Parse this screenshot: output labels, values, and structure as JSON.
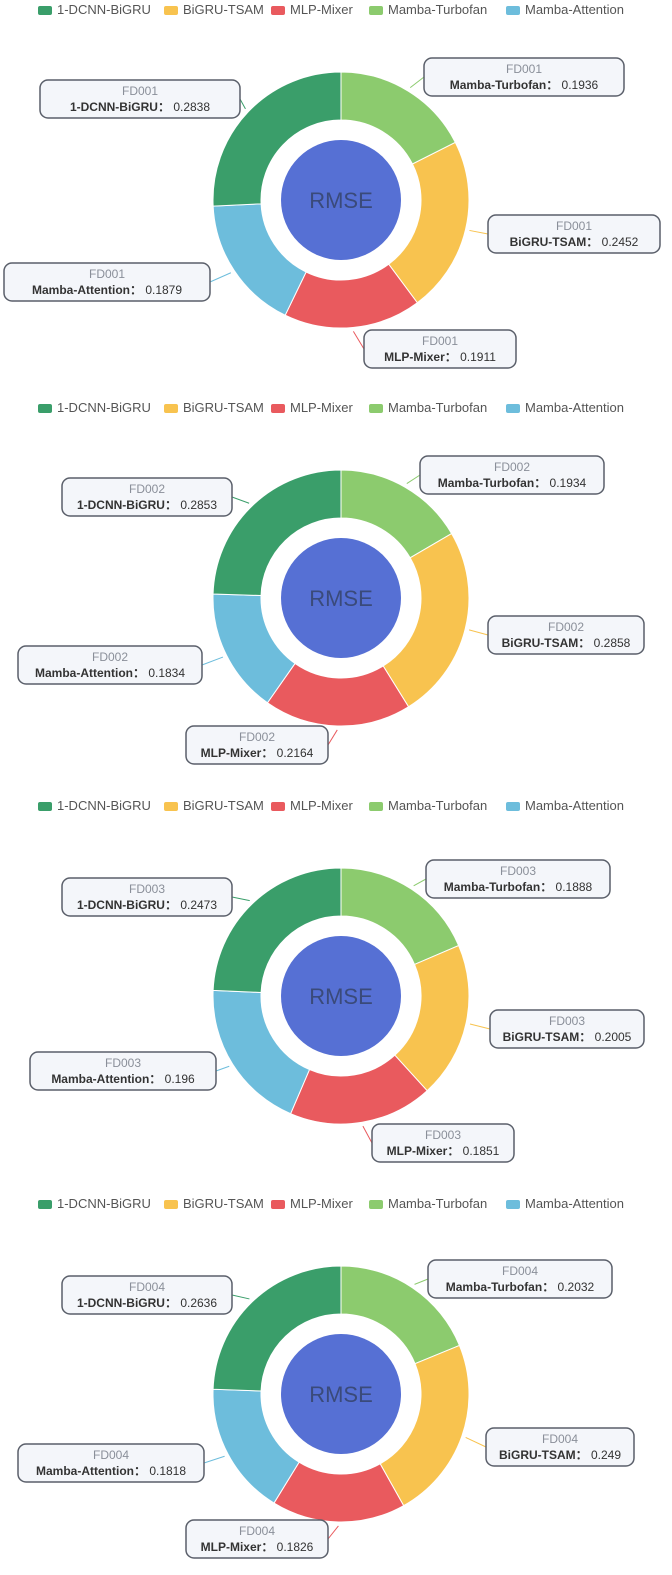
{
  "colors": {
    "1-DCNN-BiGRU": "#3a9e6a",
    "BiGRU-TSAM": "#f8c34f",
    "MLP-Mixer": "#e95a5e",
    "Mamba-Turbofan": "#8ccb6e",
    "Mamba-Attention": "#6dbddc",
    "center": "#5670d4"
  },
  "chart_data": [
    {
      "type": "pie",
      "subtype": "donut",
      "legend": [
        "1-DCNN-BiGRU",
        "BiGRU-TSAM",
        "MLP-Mixer",
        "Mamba-Turbofan",
        "Mamba-Attention"
      ],
      "legend_position": "top",
      "center_label": "RMSE",
      "series_name": "FD001",
      "slices": [
        {
          "name": "Mamba-Turbofan",
          "value": 0.1936
        },
        {
          "name": "BiGRU-TSAM",
          "value": 0.2452
        },
        {
          "name": "MLP-Mixer",
          "value": 0.1911
        },
        {
          "name": "Mamba-Attention",
          "value": 0.1879
        },
        {
          "name": "1-DCNN-BiGRU",
          "value": 0.2838
        }
      ]
    },
    {
      "type": "pie",
      "subtype": "donut",
      "legend": [
        "1-DCNN-BiGRU",
        "BiGRU-TSAM",
        "MLP-Mixer",
        "Mamba-Turbofan",
        "Mamba-Attention"
      ],
      "legend_position": "top",
      "center_label": "RMSE",
      "series_name": "FD002",
      "slices": [
        {
          "name": "Mamba-Turbofan",
          "value": 0.1934
        },
        {
          "name": "BiGRU-TSAM",
          "value": 0.2858
        },
        {
          "name": "MLP-Mixer",
          "value": 0.2164
        },
        {
          "name": "Mamba-Attention",
          "value": 0.1834
        },
        {
          "name": "1-DCNN-BiGRU",
          "value": 0.2853
        }
      ]
    },
    {
      "type": "pie",
      "subtype": "donut",
      "legend": [
        "1-DCNN-BiGRU",
        "BiGRU-TSAM",
        "MLP-Mixer",
        "Mamba-Turbofan",
        "Mamba-Attention"
      ],
      "legend_position": "top",
      "center_label": "RMSE",
      "series_name": "FD003",
      "slices": [
        {
          "name": "Mamba-Turbofan",
          "value": 0.1888
        },
        {
          "name": "BiGRU-TSAM",
          "value": 0.2005
        },
        {
          "name": "MLP-Mixer",
          "value": 0.1851
        },
        {
          "name": "Mamba-Attention",
          "value": 0.196
        },
        {
          "name": "1-DCNN-BiGRU",
          "value": 0.2473
        }
      ]
    },
    {
      "type": "pie",
      "subtype": "donut",
      "legend": [
        "1-DCNN-BiGRU",
        "BiGRU-TSAM",
        "MLP-Mixer",
        "Mamba-Turbofan",
        "Mamba-Attention"
      ],
      "legend_position": "top",
      "center_label": "RMSE",
      "series_name": "FD004",
      "slices": [
        {
          "name": "Mamba-Turbofan",
          "value": 0.2032
        },
        {
          "name": "BiGRU-TSAM",
          "value": 0.249
        },
        {
          "name": "MLP-Mixer",
          "value": 0.1826
        },
        {
          "name": "Mamba-Attention",
          "value": 0.1818
        },
        {
          "name": "1-DCNN-BiGRU",
          "value": 0.2636
        }
      ]
    }
  ]
}
